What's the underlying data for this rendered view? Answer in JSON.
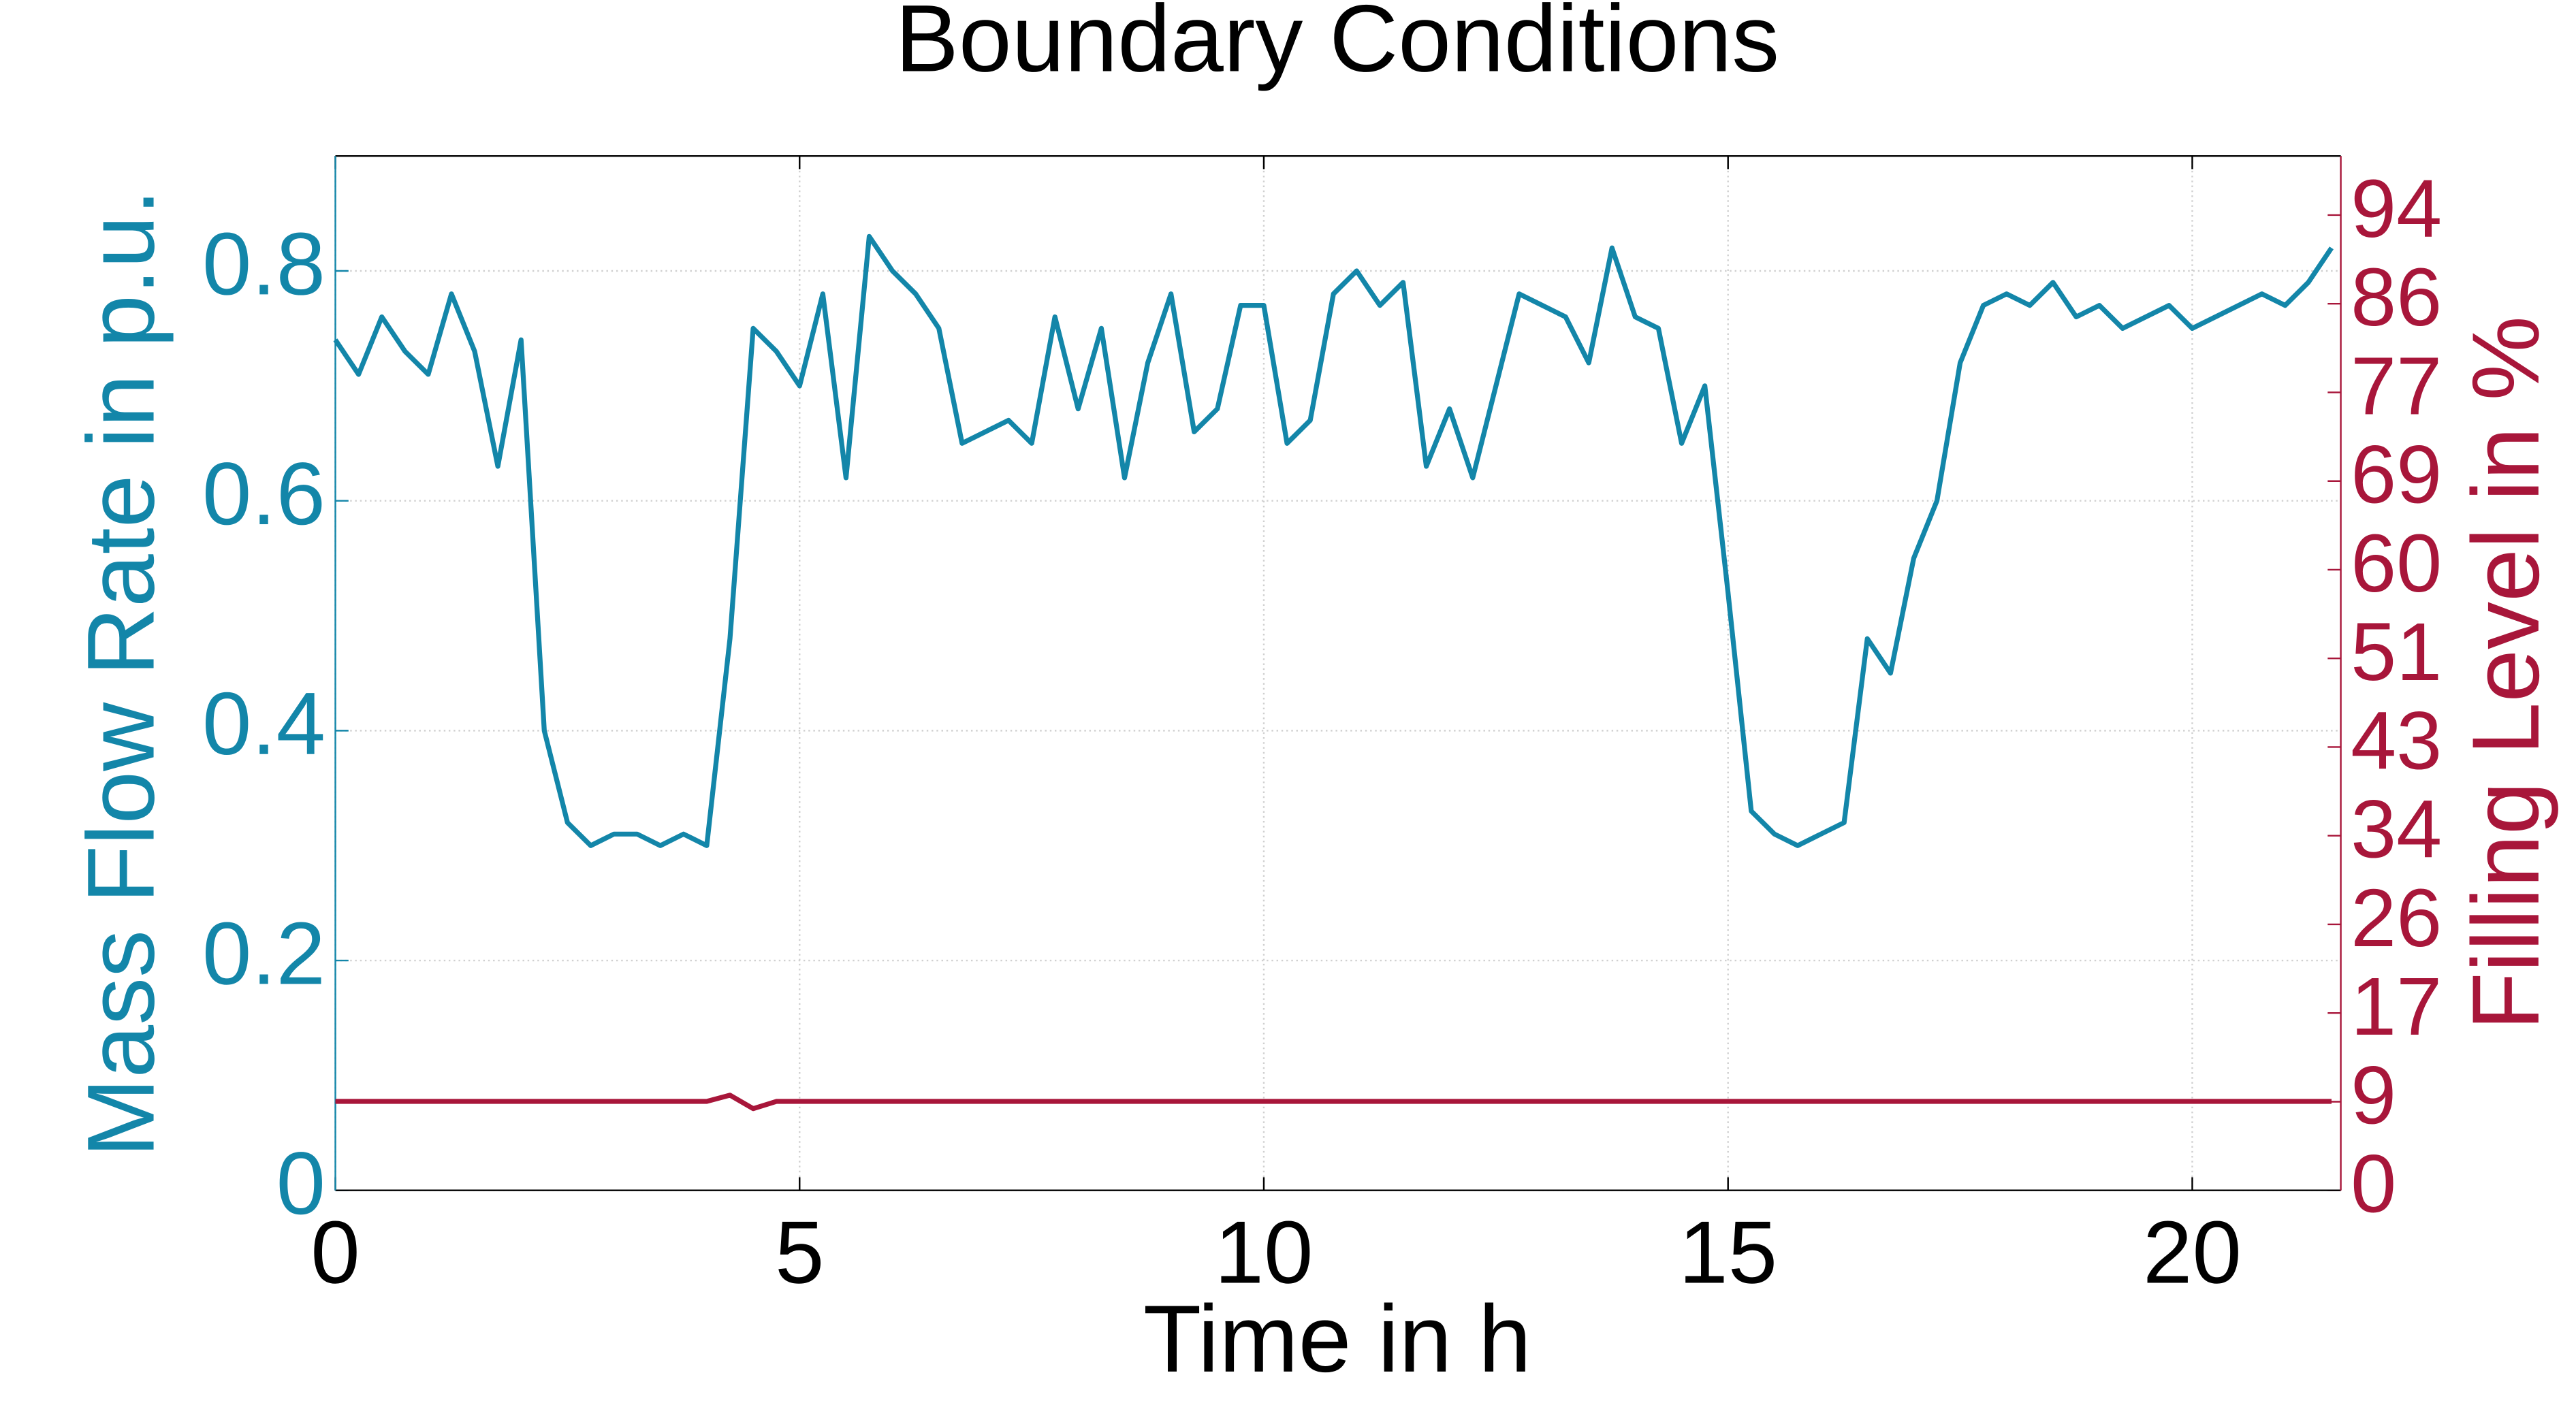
{
  "chart_data": {
    "type": "line",
    "title": "Boundary Conditions",
    "xlabel": "Time in h",
    "ylabel": "Mass Flow Rate in p.u.",
    "y2label": "Filling Level in %",
    "grid": true,
    "xlim": [
      0,
      21.6
    ],
    "xticks": [
      0,
      5,
      10,
      15,
      20
    ],
    "ylim": [
      0,
      0.9
    ],
    "yticks": [
      0,
      0.2,
      0.4,
      0.6,
      0.8
    ],
    "y2lim": [
      0,
      100
    ],
    "y2ticks": [
      0,
      {
        "value": 8.571,
        "label": "9"
      },
      {
        "value": 17.143,
        "label": "17"
      },
      {
        "value": 25.714,
        "label": "26"
      },
      {
        "value": 34.286,
        "label": "34"
      },
      {
        "value": 42.857,
        "label": "43"
      },
      {
        "value": 51.429,
        "label": "51"
      },
      60,
      {
        "value": 68.571,
        "label": "69"
      },
      {
        "value": 77.143,
        "label": "77"
      },
      {
        "value": 85.714,
        "label": "86"
      },
      {
        "value": 94.286,
        "label": "94"
      }
    ],
    "x": [
      0,
      0.25,
      0.5,
      0.75,
      1,
      1.25,
      1.5,
      1.75,
      2,
      2.25,
      2.5,
      2.75,
      3,
      3.25,
      3.5,
      3.75,
      4,
      4.25,
      4.5,
      4.75,
      5,
      5.25,
      5.5,
      5.75,
      6,
      6.25,
      6.5,
      6.75,
      7,
      7.25,
      7.5,
      7.75,
      8,
      8.25,
      8.5,
      8.75,
      9,
      9.25,
      9.5,
      9.75,
      10,
      10.25,
      10.5,
      10.75,
      11,
      11.25,
      11.5,
      11.75,
      12,
      12.25,
      12.5,
      12.75,
      13,
      13.25,
      13.5,
      13.75,
      14,
      14.25,
      14.5,
      14.75,
      15,
      15.25,
      15.5,
      15.75,
      16,
      16.25,
      16.5,
      16.75,
      17,
      17.25,
      17.5,
      17.75,
      18,
      18.25,
      18.5,
      18.75,
      19,
      19.25,
      19.5,
      19.75,
      20,
      20.25,
      20.5,
      20.75,
      21,
      21.25,
      21.5
    ],
    "series": [
      {
        "color": "#1386a9",
        "values": [
          0.74,
          0.71,
          0.76,
          0.73,
          0.71,
          0.78,
          0.73,
          0.63,
          0.74,
          0.4,
          0.32,
          0.3,
          0.31,
          0.31,
          0.3,
          0.31,
          0.3,
          0.48,
          0.75,
          0.73,
          0.7,
          0.78,
          0.62,
          0.83,
          0.8,
          0.78,
          0.75,
          0.65,
          0.66,
          0.67,
          0.65,
          0.76,
          0.68,
          0.75,
          0.62,
          0.72,
          0.78,
          0.66,
          0.68,
          0.77,
          0.77,
          0.65,
          0.67,
          0.78,
          0.8,
          0.77,
          0.79,
          0.63,
          0.68,
          0.62,
          0.7,
          0.78,
          0.77,
          0.76,
          0.72,
          0.82,
          0.76,
          0.75,
          0.65,
          0.7,
          0.52,
          0.33,
          0.31,
          0.3,
          0.31,
          0.32,
          0.48,
          0.45,
          0.55,
          0.6,
          0.72,
          0.77,
          0.78,
          0.77,
          0.79,
          0.76,
          0.77,
          0.75,
          0.76,
          0.77,
          0.75,
          0.76,
          0.77,
          0.78,
          0.77,
          0.79,
          0.82
        ]
      },
      {
        "color": "#a8163a",
        "axis": "y2",
        "values": [
          8.6,
          8.6,
          8.6,
          8.6,
          8.6,
          8.6,
          8.6,
          8.6,
          8.6,
          8.6,
          8.6,
          8.6,
          8.6,
          8.6,
          8.6,
          8.6,
          8.6,
          9.2,
          7.9,
          8.6,
          8.6,
          8.6,
          8.6,
          8.6,
          8.6,
          8.6,
          8.6,
          8.6,
          8.6,
          8.6,
          8.6,
          8.6,
          8.6,
          8.6,
          8.6,
          8.6,
          8.6,
          8.6,
          8.6,
          8.6,
          8.6,
          8.6,
          8.6,
          8.6,
          8.6,
          8.6,
          8.6,
          8.6,
          8.6,
          8.6,
          8.6,
          8.6,
          8.6,
          8.6,
          8.6,
          8.6,
          8.6,
          8.6,
          8.6,
          8.6,
          8.6,
          8.6,
          8.6,
          8.6,
          8.6,
          8.6,
          8.6,
          8.6,
          8.6,
          8.6,
          8.6,
          8.6,
          8.6,
          8.6,
          8.6,
          8.6,
          8.6,
          8.6,
          8.6,
          8.6,
          8.6,
          8.6,
          8.6,
          8.6,
          8.6,
          8.6,
          8.6
        ]
      }
    ]
  }
}
